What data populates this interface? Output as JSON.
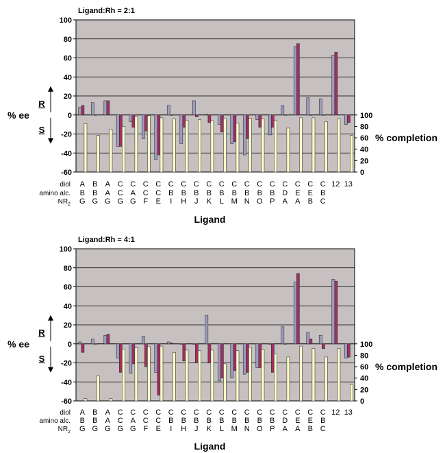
{
  "chart_data": [
    {
      "type": "bar",
      "title": "Ligand:Rh = 2:1",
      "xlabel": "Ligand",
      "ylabel_left": "% ee",
      "ylabel_right": "% completion",
      "left_marker_top": "R",
      "left_marker_bottom": "S",
      "ylim_left": [
        -60,
        100
      ],
      "ylim_right": [
        0,
        100
      ],
      "yticks_left": [
        "-60",
        "-40",
        "-20",
        "0",
        "20",
        "40",
        "60",
        "80",
        "100"
      ],
      "yticks_right": [
        "0",
        "20",
        "40",
        "60",
        "80",
        "100"
      ],
      "row_labels": [
        "diol",
        "amino alc.",
        "NR2"
      ],
      "categories": [
        [
          "A",
          "B",
          "G"
        ],
        [
          "B",
          "B",
          "G"
        ],
        [
          "A",
          "A",
          "G"
        ],
        [
          "C",
          "C",
          "G"
        ],
        [
          "C",
          "A",
          "G"
        ],
        [
          "C",
          "C",
          "F"
        ],
        [
          "C",
          "C",
          "E"
        ],
        [
          "C",
          "B",
          "I"
        ],
        [
          "C",
          "B",
          "H"
        ],
        [
          "C",
          "B",
          "J"
        ],
        [
          "C",
          "B",
          "K"
        ],
        [
          "C",
          "B",
          "L"
        ],
        [
          "C",
          "B",
          "M"
        ],
        [
          "C",
          "B",
          "N"
        ],
        [
          "C",
          "B",
          "O"
        ],
        [
          "C",
          "B",
          "P"
        ],
        [
          "C",
          "D",
          "A"
        ],
        [
          "C",
          "E",
          "A"
        ],
        [
          "C",
          "E",
          "B"
        ],
        [
          "C",
          "B",
          "C"
        ],
        [
          "12",
          "",
          ""
        ],
        [
          "13",
          "",
          ""
        ]
      ],
      "series": [
        {
          "values": [
            8,
            13,
            15,
            -33,
            -7,
            -25,
            -47,
            10,
            -30,
            15,
            1,
            -10,
            -30,
            -42,
            -5,
            -21,
            10,
            72,
            18,
            17,
            63,
            -10
          ]
        },
        {
          "values": [
            10,
            0,
            15,
            -33,
            -13,
            -17,
            -42,
            0,
            -13,
            -2,
            -8,
            -18,
            -28,
            -25,
            -13,
            -13,
            0,
            75,
            0,
            0,
            66,
            -8
          ]
        },
        {
          "values": [
            85,
            64,
            75,
            80,
            97,
            99,
            95,
            93,
            91,
            92,
            90,
            93,
            86,
            94,
            93,
            91,
            77,
            95,
            95,
            88,
            93,
            64
          ]
        }
      ]
    },
    {
      "type": "bar",
      "title": "Ligand:Rh = 4:1",
      "xlabel": "Ligand",
      "ylabel_left": "% ee",
      "ylabel_right": "% completion",
      "left_marker_top": "R",
      "left_marker_bottom": "S",
      "ylim_left": [
        -60,
        100
      ],
      "ylim_right": [
        0,
        100
      ],
      "yticks_left": [
        "-60",
        "-40",
        "-20",
        "0",
        "20",
        "40",
        "60",
        "80",
        "100"
      ],
      "yticks_right": [
        "0",
        "20",
        "40",
        "60",
        "80",
        "100"
      ],
      "row_labels": [
        "diol",
        "amino alc.",
        "NR2"
      ],
      "categories": [
        [
          "A",
          "B",
          "G"
        ],
        [
          "B",
          "B",
          "G"
        ],
        [
          "A",
          "A",
          "G"
        ],
        [
          "C",
          "C",
          "G"
        ],
        [
          "C",
          "A",
          "G"
        ],
        [
          "C",
          "C",
          "F"
        ],
        [
          "C",
          "C",
          "E"
        ],
        [
          "C",
          "B",
          "I"
        ],
        [
          "C",
          "B",
          "H"
        ],
        [
          "C",
          "B",
          "J"
        ],
        [
          "C",
          "B",
          "K"
        ],
        [
          "C",
          "B",
          "L"
        ],
        [
          "C",
          "B",
          "M"
        ],
        [
          "C",
          "B",
          "N"
        ],
        [
          "C",
          "B",
          "O"
        ],
        [
          "C",
          "B",
          "P"
        ],
        [
          "C",
          "D",
          "A"
        ],
        [
          "C",
          "E",
          "A"
        ],
        [
          "C",
          "E",
          "B"
        ],
        [
          "C",
          "B",
          "C"
        ],
        [
          "12",
          "",
          ""
        ],
        [
          "13",
          "",
          ""
        ]
      ],
      "series": [
        {
          "values": [
            2,
            5,
            9,
            -15,
            -31,
            8,
            -30,
            2,
            0,
            0,
            30,
            -39,
            -36,
            -32,
            -25,
            0,
            18,
            65,
            12,
            9,
            68,
            -15
          ]
        },
        {
          "values": [
            -9,
            0,
            10,
            -30,
            -21,
            -24,
            -54,
            1,
            -18,
            -20,
            -20,
            -36,
            -28,
            -30,
            -25,
            -30,
            0,
            74,
            5,
            -5,
            66,
            -14
          ]
        },
        {
          "values": [
            4,
            44,
            4,
            91,
            93,
            95,
            96,
            85,
            89,
            88,
            89,
            65,
            88,
            94,
            90,
            82,
            77,
            96,
            92,
            77,
            92,
            29
          ]
        }
      ]
    }
  ],
  "colors": {
    "plot_background": "#c6c0c0",
    "series_ee_1": "#9c9cbd",
    "series_ee_2": "#a12e62",
    "series_completion": "#ffffcc",
    "gridline": "#000000"
  }
}
